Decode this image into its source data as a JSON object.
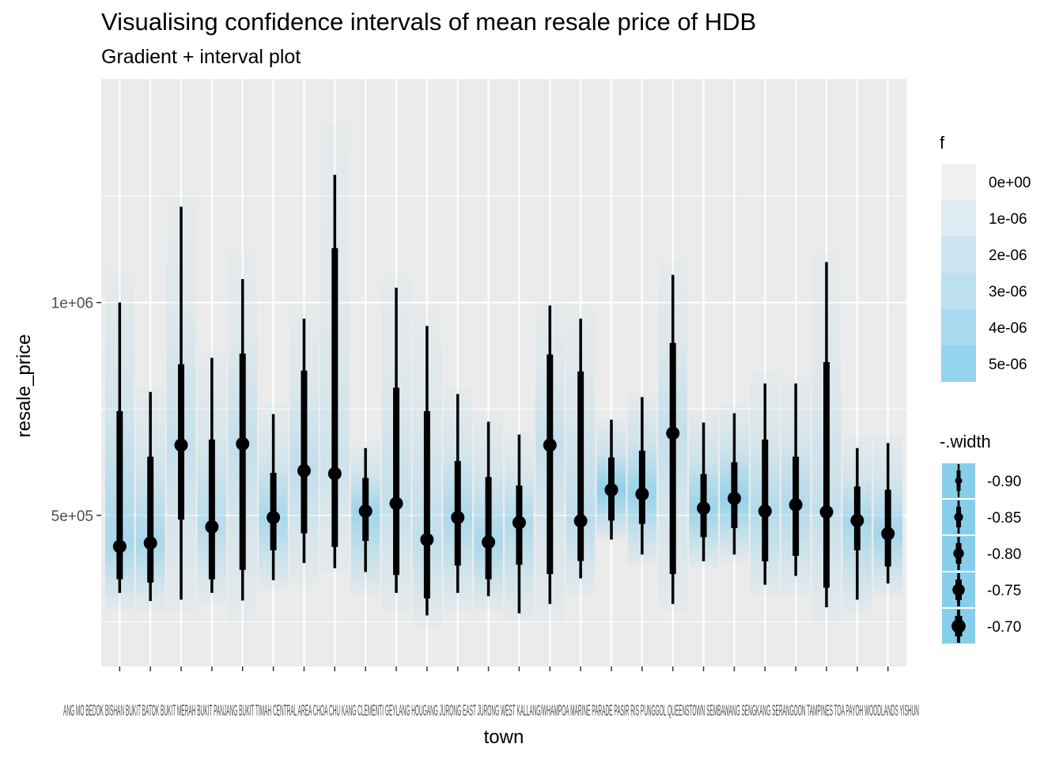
{
  "chart_data": {
    "type": "gradient-interval",
    "title": "Visualising confidence intervals of mean resale price of HDB",
    "subtitle": "Gradient + interval plot",
    "xlabel": "town",
    "ylabel": "resale_price",
    "ylim": [
      145000,
      1525000
    ],
    "y_ticks": [
      {
        "value": 500000,
        "label": "5e+05"
      },
      {
        "value": 1000000,
        "label": "1e+06"
      }
    ],
    "y_minor_ticks": [
      250000,
      750000,
      1250000
    ],
    "categories": [
      "ANG MO KIO",
      "BEDOK",
      "BISHAN",
      "BUKIT BATOK",
      "BUKIT MERAH",
      "BUKIT PANJANG",
      "BUKIT TIMAH",
      "CENTRAL AREA",
      "CHOA CHU KANG",
      "CLEMENTI",
      "GEYLANG",
      "HOUGANG",
      "JURONG EAST",
      "JURONG WEST",
      "KALLANG/WHAMPOA",
      "MARINE PARADE",
      "PASIR RIS",
      "PUNGGOL",
      "QUEENSTOWN",
      "SEMBAWANG",
      "SENGKANG",
      "SERANGOON",
      "TAMPINES",
      "TOA PAYOH",
      "WOODLANDS",
      "YISHUN"
    ],
    "x_tick_labels_rendered": "ANG MO BEDOK BISHAN BUKIT BATOK BUKIT MERAH BUKIT PANJANG BUKIT TIMAH CENTRAL AREA CHOA CHU KANG CLEMENTI GEYLANG HOUGANG JURONG EAST JURONG WEST KALLANG/WHAMPOA MARINE PARADE PASIR RIS PUNGGOL QUEENSTOWN SEMBAWANG SENGKANG SERANGOON TAMPINES TOA PAYOH WOODLANDS YISHUN",
    "series": [
      {
        "point": 427000,
        "inner": [
          350000,
          745000
        ],
        "outer": [
          318000,
          1000000
        ],
        "dist": [
          277000,
          1080000
        ],
        "peak": 0.7
      },
      {
        "point": 435000,
        "inner": [
          342000,
          638000
        ],
        "outer": [
          299000,
          790000
        ],
        "dist": [
          275000,
          800000
        ],
        "peak": 0.7
      },
      {
        "point": 665000,
        "inner": [
          490000,
          855000
        ],
        "outer": [
          302000,
          1225000
        ],
        "dist": [
          270000,
          1250000
        ],
        "peak": 0.4
      },
      {
        "point": 473000,
        "inner": [
          350000,
          678000
        ],
        "outer": [
          318000,
          870000
        ],
        "dist": [
          290000,
          890000
        ],
        "peak": 0.55
      },
      {
        "point": 668000,
        "inner": [
          372000,
          880000
        ],
        "outer": [
          300000,
          1055000
        ],
        "dist": [
          248000,
          1125000
        ],
        "peak": 0.4
      },
      {
        "point": 495000,
        "inner": [
          418000,
          600000
        ],
        "outer": [
          348000,
          738000
        ],
        "dist": [
          322000,
          760000
        ],
        "peak": 0.7
      },
      {
        "point": 605000,
        "inner": [
          458000,
          840000
        ],
        "outer": [
          388000,
          962000
        ],
        "dist": [
          335000,
          990000
        ],
        "peak": 0.45
      },
      {
        "point": 598000,
        "inner": [
          426000,
          1128000
        ],
        "outer": [
          376000,
          1300000
        ],
        "dist": [
          365000,
          1420000
        ],
        "peak": 0.3
      },
      {
        "point": 510000,
        "inner": [
          440000,
          588000
        ],
        "outer": [
          367000,
          658000
        ],
        "dist": [
          310000,
          675000
        ],
        "peak": 0.8
      },
      {
        "point": 528000,
        "inner": [
          360000,
          800000
        ],
        "outer": [
          318000,
          1035000
        ],
        "dist": [
          270000,
          1070000
        ],
        "peak": 0.4
      },
      {
        "point": 443000,
        "inner": [
          305000,
          745000
        ],
        "outer": [
          265000,
          945000
        ],
        "dist": [
          235000,
          985000
        ],
        "peak": 0.45
      },
      {
        "point": 495000,
        "inner": [
          382000,
          628000
        ],
        "outer": [
          318000,
          785000
        ],
        "dist": [
          276000,
          800000
        ],
        "peak": 0.65
      },
      {
        "point": 437000,
        "inner": [
          350000,
          590000
        ],
        "outer": [
          310000,
          720000
        ],
        "dist": [
          276000,
          740000
        ],
        "peak": 0.7
      },
      {
        "point": 483000,
        "inner": [
          384000,
          570000
        ],
        "outer": [
          270000,
          690000
        ],
        "dist": [
          255000,
          700000
        ],
        "peak": 0.6
      },
      {
        "point": 665000,
        "inner": [
          362000,
          878000
        ],
        "outer": [
          292000,
          993000
        ],
        "dist": [
          248000,
          1010000
        ],
        "peak": 0.4
      },
      {
        "point": 487000,
        "inner": [
          393000,
          838000
        ],
        "outer": [
          352000,
          962000
        ],
        "dist": [
          310000,
          990000
        ],
        "peak": 0.5
      },
      {
        "point": 560000,
        "inner": [
          488000,
          636000
        ],
        "outer": [
          443000,
          725000
        ],
        "dist": [
          443000,
          725000
        ],
        "peak": 1.0
      },
      {
        "point": 550000,
        "inner": [
          480000,
          652000
        ],
        "outer": [
          408000,
          778000
        ],
        "dist": [
          382000,
          790000
        ],
        "peak": 0.85
      },
      {
        "point": 693000,
        "inner": [
          362000,
          905000
        ],
        "outer": [
          292000,
          1065000
        ],
        "dist": [
          275000,
          1100000
        ],
        "peak": 0.4
      },
      {
        "point": 517000,
        "inner": [
          449000,
          597000
        ],
        "outer": [
          392000,
          718000
        ],
        "dist": [
          375000,
          748000
        ],
        "peak": 0.85
      },
      {
        "point": 540000,
        "inner": [
          470000,
          625000
        ],
        "outer": [
          408000,
          740000
        ],
        "dist": [
          390000,
          760000
        ],
        "peak": 0.9
      },
      {
        "point": 510000,
        "inner": [
          392000,
          678000
        ],
        "outer": [
          337000,
          810000
        ],
        "dist": [
          310000,
          840000
        ],
        "peak": 0.6
      },
      {
        "point": 525000,
        "inner": [
          405000,
          638000
        ],
        "outer": [
          358000,
          810000
        ],
        "dist": [
          310000,
          830000
        ],
        "peak": 0.6
      },
      {
        "point": 508000,
        "inner": [
          330000,
          860000
        ],
        "outer": [
          284000,
          1095000
        ],
        "dist": [
          245000,
          1120000
        ],
        "peak": 0.4
      },
      {
        "point": 488000,
        "inner": [
          418000,
          568000
        ],
        "outer": [
          302000,
          658000
        ],
        "dist": [
          265000,
          688000
        ],
        "peak": 0.7
      },
      {
        "point": 457000,
        "inner": [
          380000,
          560000
        ],
        "outer": [
          340000,
          670000
        ],
        "dist": [
          310000,
          690000
        ],
        "peak": 0.75
      }
    ],
    "legend_fill": {
      "title": "f",
      "labels": [
        "0e+00",
        "1e-06",
        "2e-06",
        "3e-06",
        "4e-06",
        "5e-06"
      ],
      "colors": [
        "#f0f0f0",
        "#ddebf2",
        "#cde5f0",
        "#bce0ef",
        "#a9daf0",
        "#94d4ee"
      ]
    },
    "legend_width": {
      "title": "-.width",
      "labels": [
        "-0.90",
        "-0.85",
        "-0.80",
        "-0.75",
        "-0.70"
      ]
    },
    "colors": {
      "panel": "#ebebeb",
      "grid": "#ffffff",
      "gradient": "#87ceeb",
      "interval": "#000000",
      "axis_text": "#4d4d4d"
    },
    "grid": true,
    "legend_position": "right"
  }
}
